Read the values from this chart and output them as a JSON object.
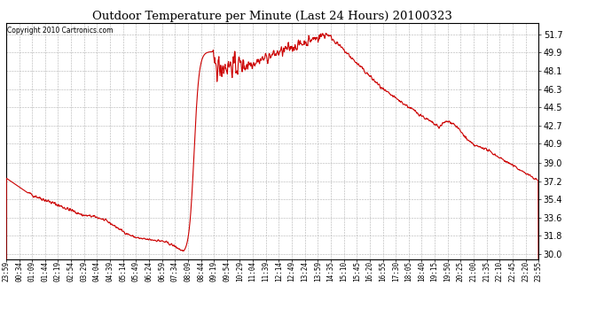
{
  "title": "Outdoor Temperature per Minute (Last 24 Hours) 20100323",
  "copyright_text": "Copyright 2010 Cartronics.com",
  "line_color": "#cc0000",
  "bg_color": "#ffffff",
  "plot_bg_color": "#ffffff",
  "grid_color": "#b0b0b0",
  "yticks": [
    30.0,
    31.8,
    33.6,
    35.4,
    37.2,
    39.0,
    40.9,
    42.7,
    44.5,
    46.3,
    48.1,
    49.9,
    51.7
  ],
  "ymin": 29.5,
  "ymax": 52.8,
  "xtick_labels": [
    "23:59",
    "00:34",
    "01:09",
    "01:44",
    "02:19",
    "02:54",
    "03:29",
    "04:04",
    "04:39",
    "05:14",
    "05:49",
    "06:24",
    "06:59",
    "07:34",
    "08:09",
    "08:44",
    "09:19",
    "09:54",
    "10:29",
    "11:04",
    "11:39",
    "12:14",
    "12:49",
    "13:24",
    "13:59",
    "14:35",
    "15:10",
    "15:45",
    "16:20",
    "16:55",
    "17:30",
    "18:05",
    "18:40",
    "19:15",
    "19:50",
    "20:25",
    "21:00",
    "21:35",
    "22:10",
    "22:45",
    "23:20",
    "23:55"
  ]
}
